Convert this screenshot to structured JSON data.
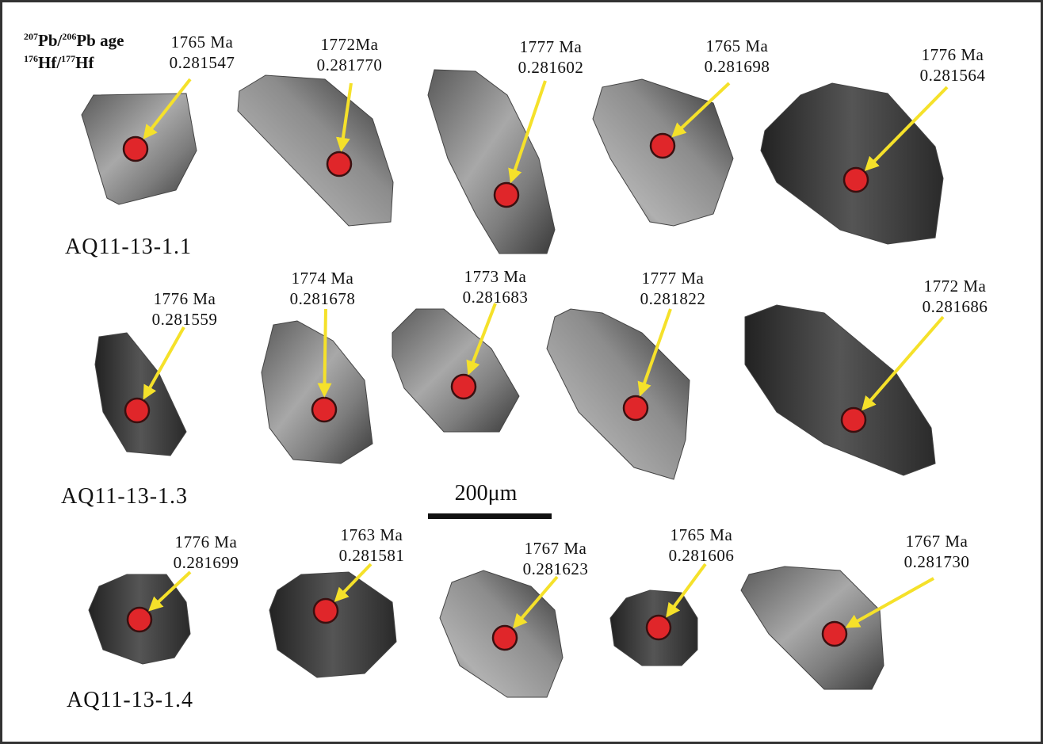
{
  "legend": {
    "line1": [
      "207",
      "Pb/",
      "206",
      "Pb age"
    ],
    "line2": [
      "176",
      "Hf/",
      "177",
      "Hf"
    ]
  },
  "samples": [
    "AQ11-13-1.1",
    "AQ11-13-1.3",
    "AQ11-13-1.4"
  ],
  "scale_bar": "200μm",
  "grains": [
    {
      "age": "1765 Ma",
      "ratio": "0.281547"
    },
    {
      "age": "1772Ma",
      "ratio": "0.281770"
    },
    {
      "age": "1777 Ma",
      "ratio": "0.281602"
    },
    {
      "age": "1765 Ma",
      "ratio": "0.281698"
    },
    {
      "age": "1776 Ma",
      "ratio": "0.281564"
    },
    {
      "age": "1776 Ma",
      "ratio": "0.281559"
    },
    {
      "age": "1774 Ma",
      "ratio": "0.281678"
    },
    {
      "age": "1773 Ma",
      "ratio": "0.281683"
    },
    {
      "age": "1777 Ma",
      "ratio": "0.281822"
    },
    {
      "age": "1772 Ma",
      "ratio": "0.281686"
    },
    {
      "age": "1776 Ma",
      "ratio": "0.281699"
    },
    {
      "age": "1763 Ma",
      "ratio": "0.281581"
    },
    {
      "age": "1767 Ma",
      "ratio": "0.281623"
    },
    {
      "age": "1765 Ma",
      "ratio": "0.281606"
    },
    {
      "age": "1767 Ma",
      "ratio": "0.281730"
    }
  ]
}
